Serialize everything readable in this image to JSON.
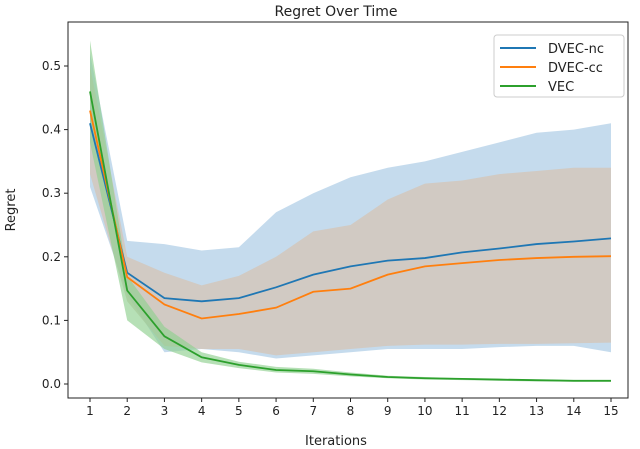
{
  "chart_data": {
    "type": "line",
    "title": "Regret Over Time",
    "xlabel": "Iterations",
    "ylabel": "Regret",
    "xlim": [
      0.4,
      15.4
    ],
    "ylim": [
      -0.022,
      0.57
    ],
    "x_ticks": [
      1,
      2,
      3,
      4,
      5,
      6,
      7,
      8,
      9,
      10,
      11,
      12,
      13,
      14,
      15
    ],
    "y_ticks": [
      0.0,
      0.1,
      0.2,
      0.3,
      0.4,
      0.5
    ],
    "y_tick_labels": [
      "0.0",
      "0.1",
      "0.2",
      "0.3",
      "0.4",
      "0.5"
    ],
    "grid": false,
    "legend_position": "top-right",
    "x": [
      1,
      2,
      3,
      4,
      5,
      6,
      7,
      8,
      9,
      10,
      11,
      12,
      13,
      14,
      15
    ],
    "series": [
      {
        "name": "DVEC-nc",
        "color": "#1f77b4",
        "band_color": "#a6c8e4",
        "values": [
          0.41,
          0.175,
          0.135,
          0.13,
          0.135,
          0.152,
          0.172,
          0.185,
          0.194,
          0.198,
          0.207,
          0.213,
          0.22,
          0.224,
          0.229
        ],
        "upper": [
          0.52,
          0.225,
          0.22,
          0.21,
          0.215,
          0.27,
          0.3,
          0.325,
          0.34,
          0.35,
          0.365,
          0.38,
          0.395,
          0.4,
          0.41
        ],
        "lower": [
          0.31,
          0.14,
          0.05,
          0.055,
          0.05,
          0.04,
          0.045,
          0.05,
          0.055,
          0.055,
          0.055,
          0.058,
          0.06,
          0.06,
          0.05
        ]
      },
      {
        "name": "DVEC-cc",
        "color": "#ff7f0e",
        "band_color": "#d4c4b4",
        "values": [
          0.43,
          0.168,
          0.125,
          0.103,
          0.11,
          0.12,
          0.145,
          0.15,
          0.172,
          0.185,
          0.19,
          0.195,
          0.198,
          0.2,
          0.201
        ],
        "upper": [
          0.5,
          0.2,
          0.175,
          0.155,
          0.17,
          0.2,
          0.24,
          0.25,
          0.29,
          0.315,
          0.32,
          0.33,
          0.335,
          0.34,
          0.34
        ],
        "lower": [
          0.33,
          0.13,
          0.06,
          0.055,
          0.055,
          0.045,
          0.05,
          0.055,
          0.06,
          0.062,
          0.062,
          0.063,
          0.063,
          0.064,
          0.065
        ]
      },
      {
        "name": "VEC",
        "color": "#2ca02c",
        "band_color": "#8fcf8f",
        "values": [
          0.46,
          0.147,
          0.075,
          0.042,
          0.03,
          0.022,
          0.02,
          0.015,
          0.011,
          0.009,
          0.008,
          0.007,
          0.006,
          0.005,
          0.005
        ],
        "upper": [
          0.54,
          0.17,
          0.09,
          0.05,
          0.035,
          0.027,
          0.024,
          0.018,
          0.013,
          0.011,
          0.009,
          0.008,
          0.007,
          0.006,
          0.006
        ],
        "lower": [
          0.38,
          0.1,
          0.055,
          0.034,
          0.025,
          0.018,
          0.016,
          0.012,
          0.009,
          0.007,
          0.006,
          0.005,
          0.004,
          0.004,
          0.004
        ]
      }
    ]
  }
}
